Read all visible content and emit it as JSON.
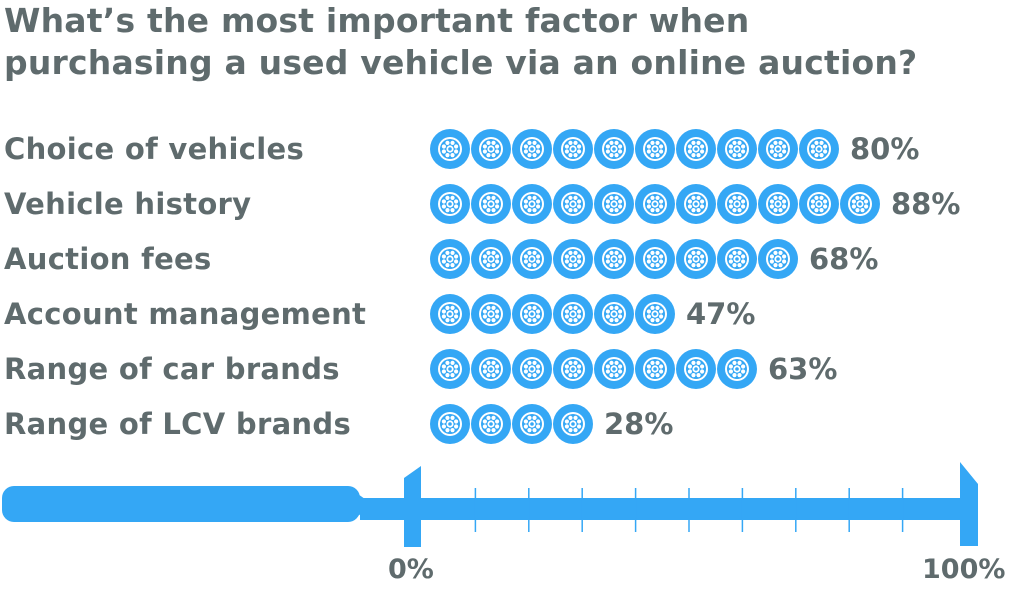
{
  "chart_data": {
    "type": "bar",
    "title_lines": [
      "What’s the most important factor when",
      "purchasing a used vehicle via an online auction?"
    ],
    "title": "What’s the most important factor when purchasing a used vehicle via an online auction?",
    "categories": [
      "Choice of vehicles",
      "Vehicle history",
      "Auction fees",
      "Account management",
      "Range of car brands",
      "Range of LCV brands"
    ],
    "values": [
      80,
      88,
      68,
      47,
      63,
      28
    ],
    "value_labels": [
      "80%",
      "88%",
      "68%",
      "47%",
      "63%",
      "28%"
    ],
    "icon_counts": [
      10,
      11,
      9,
      6,
      8,
      4
    ],
    "icon": "wheel-icon",
    "orientation": "horizontal",
    "xlabel": "",
    "ylabel": "",
    "xlim": [
      0,
      100
    ],
    "axis_tick_labels": [
      "0%",
      "100%"
    ],
    "minor_ticks": 9,
    "colors": {
      "bar": "#34a7f5",
      "text": "#5f6b6d"
    }
  }
}
